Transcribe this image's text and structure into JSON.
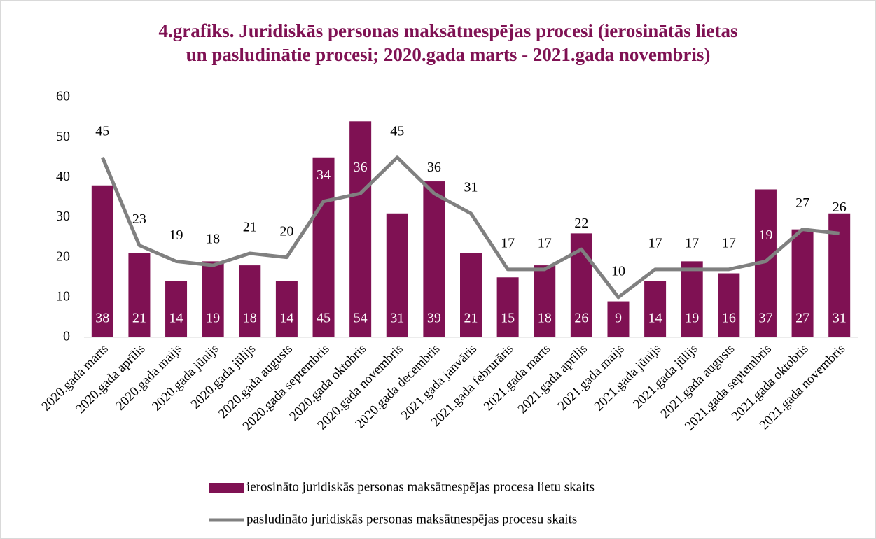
{
  "chart_data": {
    "type": "bar",
    "title": "4.grafiks. Juridiskās personas maksātnespējas procesi (ierosinātās lietas",
    "subtitle": "un pasludinātie procesi; 2020.gada marts - 2021.gada novembris)",
    "categories": [
      "2020.gada marts",
      "2020.gada aprīlis",
      "2020.gada maijs",
      "2020.gada jūnijs",
      "2020.gada jūlijs",
      "2020.gada augusts",
      "2020.gada septembris",
      "2020.gada oktobris",
      "2020.gada novembris",
      "2020.gada decembris",
      "2021.gada janvāris",
      "2021.gada februrāris",
      "2021.gada marts",
      "2021.gada aprīlis",
      "2021.gada maijs",
      "2021.gada jūnijs",
      "2021.gada jūlijs",
      "2021.gada augusts",
      "2021.gada septembris",
      "2021.gada oktobris",
      "2021.gada novembris"
    ],
    "series": [
      {
        "name": "ierosināto juridiskās personas maksātnespējas procesa lietu skaits",
        "type": "bar",
        "color": "#7f1153",
        "values": [
          38,
          21,
          14,
          19,
          18,
          14,
          45,
          54,
          31,
          39,
          21,
          15,
          18,
          26,
          9,
          14,
          19,
          16,
          37,
          27,
          31
        ]
      },
      {
        "name": "pasludināto juridiskās personas maksātnespējas procesu skaits",
        "type": "line",
        "color": "#808080",
        "values": [
          45,
          23,
          19,
          18,
          21,
          20,
          34,
          36,
          45,
          36,
          31,
          17,
          17,
          22,
          10,
          17,
          17,
          17,
          19,
          27,
          26
        ]
      }
    ],
    "ylim": [
      0,
      60
    ],
    "yticks": [
      0,
      10,
      20,
      30,
      40,
      50,
      60
    ],
    "grid": false
  }
}
